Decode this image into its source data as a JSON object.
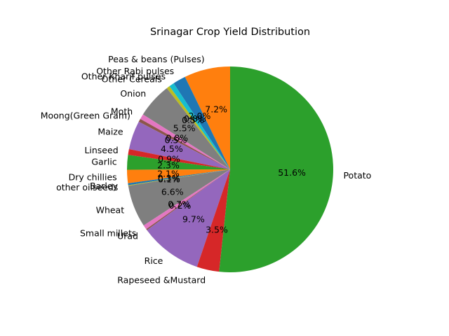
{
  "chart_data": {
    "type": "pie",
    "title": "Srinagar Crop Yield Distribution",
    "start_angle_deg": 90,
    "direction": "counterclockwise",
    "slices": [
      {
        "label": "Peas & beans (Pulses)",
        "value": 7.2,
        "pct_label": "7.2%",
        "color": "#ff7f0e"
      },
      {
        "label": "Other Rabi pulses",
        "value": 2.0,
        "pct_label": "2.0%",
        "color": "#1f77b4"
      },
      {
        "label": "Other Kharif pulses",
        "value": 0.8,
        "pct_label": "0.8%",
        "color": "#17becf"
      },
      {
        "label": "Other Cereals",
        "value": 0.5,
        "pct_label": "0.5%",
        "color": "#bcbd22"
      },
      {
        "label": "Onion",
        "value": 5.5,
        "pct_label": "5.5%",
        "color": "#7f7f7f"
      },
      {
        "label": "Moth",
        "value": 0.8,
        "pct_label": "0.8%",
        "color": "#e377c2"
      },
      {
        "label": "Moong(Green Gram)",
        "value": 0.5,
        "pct_label": "0.5%",
        "color": "#8c564b"
      },
      {
        "label": "Maize",
        "value": 4.5,
        "pct_label": "4.5%",
        "color": "#9467bd"
      },
      {
        "label": "Linseed",
        "value": 0.9,
        "pct_label": "0.9%",
        "color": "#d62728"
      },
      {
        "label": "Garlic",
        "value": 2.3,
        "pct_label": "2.3%",
        "color": "#2ca02c"
      },
      {
        "label": "Dry chillies",
        "value": 2.1,
        "pct_label": "2.1%",
        "color": "#ff7f0e"
      },
      {
        "label": "Barley",
        "value": 0.3,
        "pct_label": "0.3%",
        "color": "#1f77b4"
      },
      {
        "label": "other oilseeds",
        "value": 0.1,
        "pct_label": "0.1%",
        "color": "#bcbd22"
      },
      {
        "label": "Wheat",
        "value": 6.6,
        "pct_label": "6.6%",
        "color": "#7f7f7f"
      },
      {
        "label": "Small millets",
        "value": 0.7,
        "pct_label": "0.7%",
        "color": "#e377c2"
      },
      {
        "label": "Urad",
        "value": 0.2,
        "pct_label": "0.2%",
        "color": "#8c564b"
      },
      {
        "label": "Rice",
        "value": 9.7,
        "pct_label": "9.7%",
        "color": "#9467bd"
      },
      {
        "label": "Rapeseed &Mustard",
        "value": 3.5,
        "pct_label": "3.5%",
        "color": "#d62728"
      },
      {
        "label": "Potato",
        "value": 51.6,
        "pct_label": "51.6%",
        "color": "#2ca02c"
      }
    ]
  }
}
